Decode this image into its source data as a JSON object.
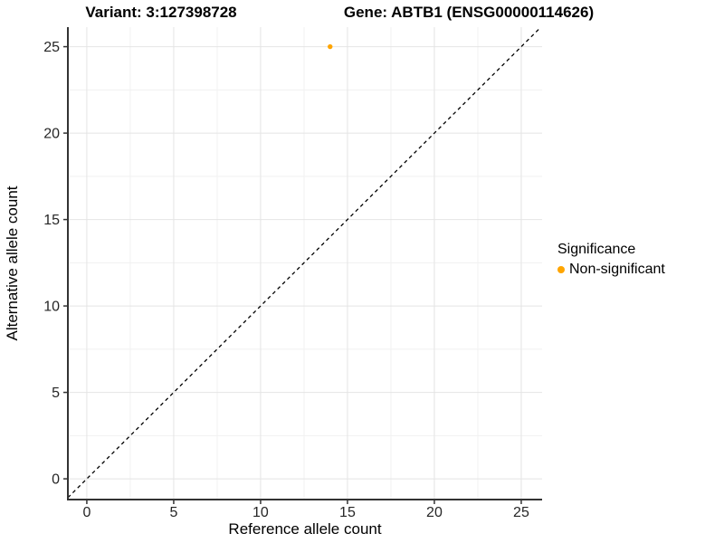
{
  "chart_data": {
    "type": "scatter",
    "title_left": "Variant: 3:127398728",
    "title_right": "Gene: ABTB1 (ENSG00000114626)",
    "xlabel": "Reference allele count",
    "ylabel": "Alternative allele count",
    "xlim": [
      -1.09,
      26.2
    ],
    "ylim": [
      -1.2,
      26.13
    ],
    "x_ticks": [
      0,
      5,
      10,
      15,
      20,
      25
    ],
    "y_ticks": [
      0,
      5,
      10,
      15,
      20,
      25
    ],
    "x_minor_ticks": [
      2.5,
      7.5,
      12.5,
      17.5,
      22.5
    ],
    "y_minor_ticks": [
      2.5,
      7.5,
      12.5,
      17.5,
      22.5
    ],
    "grid": true,
    "background": "#ffffff",
    "reference_line": {
      "type": "identity",
      "slope": 1,
      "intercept": 0,
      "style": "dashed",
      "color": "#000000"
    },
    "series": [
      {
        "name": "Non-significant",
        "color": "#FFA500",
        "points": [
          {
            "x": 14,
            "y": 25
          }
        ]
      }
    ],
    "legend": {
      "title": "Significance",
      "position": "right",
      "items": [
        {
          "label": "Non-significant",
          "color": "#FFA500"
        }
      ]
    }
  }
}
